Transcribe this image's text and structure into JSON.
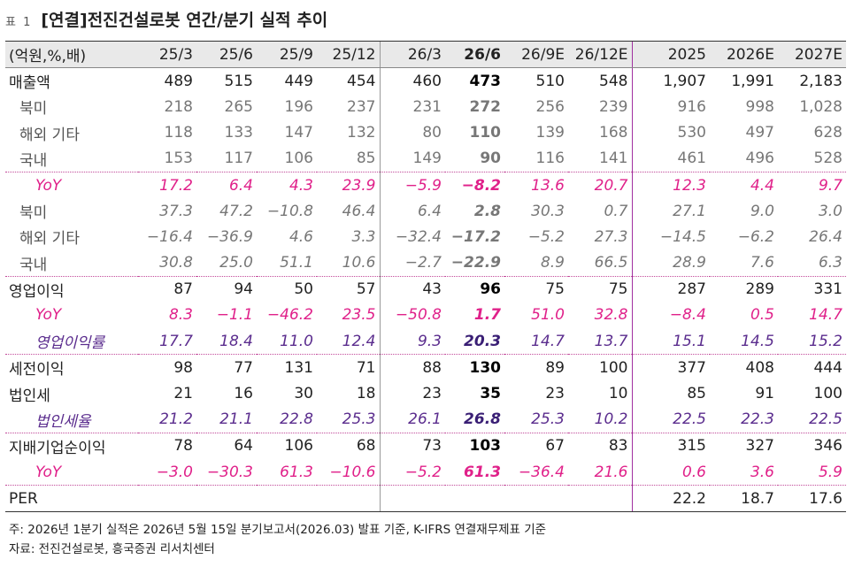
{
  "header": {
    "tag": "표 1",
    "title": "[연결]전진건설로봇 연간/분기 실적 추이"
  },
  "table": {
    "columns": [
      "(억원,%,배)",
      "25/3",
      "25/6",
      "25/9",
      "25/12",
      "26/3",
      "26/6",
      "26/9E",
      "26/12E",
      "2025",
      "2026E",
      "2027E"
    ],
    "rows": [
      {
        "label": "매출액",
        "cells": [
          "489",
          "515",
          "449",
          "454",
          "460",
          "473",
          "510",
          "548",
          "1,907",
          "1,991",
          "2,183"
        ]
      },
      {
        "label": "북미",
        "cells": [
          "218",
          "265",
          "196",
          "237",
          "231",
          "272",
          "256",
          "239",
          "916",
          "998",
          "1,028"
        ]
      },
      {
        "label": "해외 기타",
        "cells": [
          "118",
          "133",
          "147",
          "132",
          "80",
          "110",
          "139",
          "168",
          "530",
          "497",
          "628"
        ]
      },
      {
        "label": "국내",
        "cells": [
          "153",
          "117",
          "106",
          "85",
          "149",
          "90",
          "116",
          "141",
          "461",
          "496",
          "528"
        ]
      },
      {
        "label": "YoY",
        "cells": [
          "17.2",
          "6.4",
          "4.3",
          "23.9",
          "−5.9",
          "−8.2",
          "13.6",
          "20.7",
          "12.3",
          "4.4",
          "9.7"
        ]
      },
      {
        "label": "북미",
        "cells": [
          "37.3",
          "47.2",
          "−10.8",
          "46.4",
          "6.4",
          "2.8",
          "30.3",
          "0.7",
          "27.1",
          "9.0",
          "3.0"
        ]
      },
      {
        "label": "해외 기타",
        "cells": [
          "−16.4",
          "−36.9",
          "4.6",
          "3.3",
          "−32.4",
          "−17.2",
          "−5.2",
          "27.3",
          "−14.5",
          "−6.2",
          "26.4"
        ]
      },
      {
        "label": "국내",
        "cells": [
          "30.8",
          "25.0",
          "51.1",
          "10.6",
          "−2.7",
          "−22.9",
          "8.9",
          "66.5",
          "28.9",
          "7.6",
          "6.3"
        ]
      },
      {
        "label": "영업이익",
        "cells": [
          "87",
          "94",
          "50",
          "57",
          "43",
          "96",
          "75",
          "75",
          "287",
          "289",
          "331"
        ]
      },
      {
        "label": "YoY",
        "cells": [
          "8.3",
          "−1.1",
          "−46.2",
          "23.5",
          "−50.8",
          "1.7",
          "51.0",
          "32.8",
          "−8.4",
          "0.5",
          "14.7"
        ]
      },
      {
        "label": "영업이익률",
        "cells": [
          "17.7",
          "18.4",
          "11.0",
          "12.4",
          "9.3",
          "20.3",
          "14.7",
          "13.7",
          "15.1",
          "14.5",
          "15.2"
        ]
      },
      {
        "label": "세전이익",
        "cells": [
          "98",
          "77",
          "131",
          "71",
          "88",
          "130",
          "89",
          "100",
          "377",
          "408",
          "444"
        ]
      },
      {
        "label": "법인세",
        "cells": [
          "21",
          "16",
          "30",
          "18",
          "23",
          "35",
          "23",
          "10",
          "85",
          "91",
          "100"
        ]
      },
      {
        "label": "법인세율",
        "cells": [
          "21.2",
          "21.1",
          "22.8",
          "25.3",
          "26.1",
          "26.8",
          "25.3",
          "10.2",
          "22.5",
          "22.3",
          "22.5"
        ]
      },
      {
        "label": "지배기업순이익",
        "cells": [
          "78",
          "64",
          "106",
          "68",
          "73",
          "103",
          "67",
          "83",
          "315",
          "327",
          "346"
        ]
      },
      {
        "label": "YoY",
        "cells": [
          "−3.0",
          "−30.3",
          "61.3",
          "−10.6",
          "−5.2",
          "61.3",
          "−36.4",
          "21.6",
          "0.6",
          "3.6",
          "5.9"
        ]
      },
      {
        "label": "PER",
        "cells": [
          "",
          "",
          "",
          "",
          "",
          "",
          "",
          "",
          "22.2",
          "18.7",
          "17.6"
        ]
      }
    ]
  },
  "notes": {
    "line1": "주: 2026년 1분기 실적은 2026년 5월 15일 분기보고서(2026.03) 발표 기준, K-IFRS 연결재무제표 기준",
    "line2": "자료: 전진건설로봇, 흥국증권 리서치센터"
  }
}
